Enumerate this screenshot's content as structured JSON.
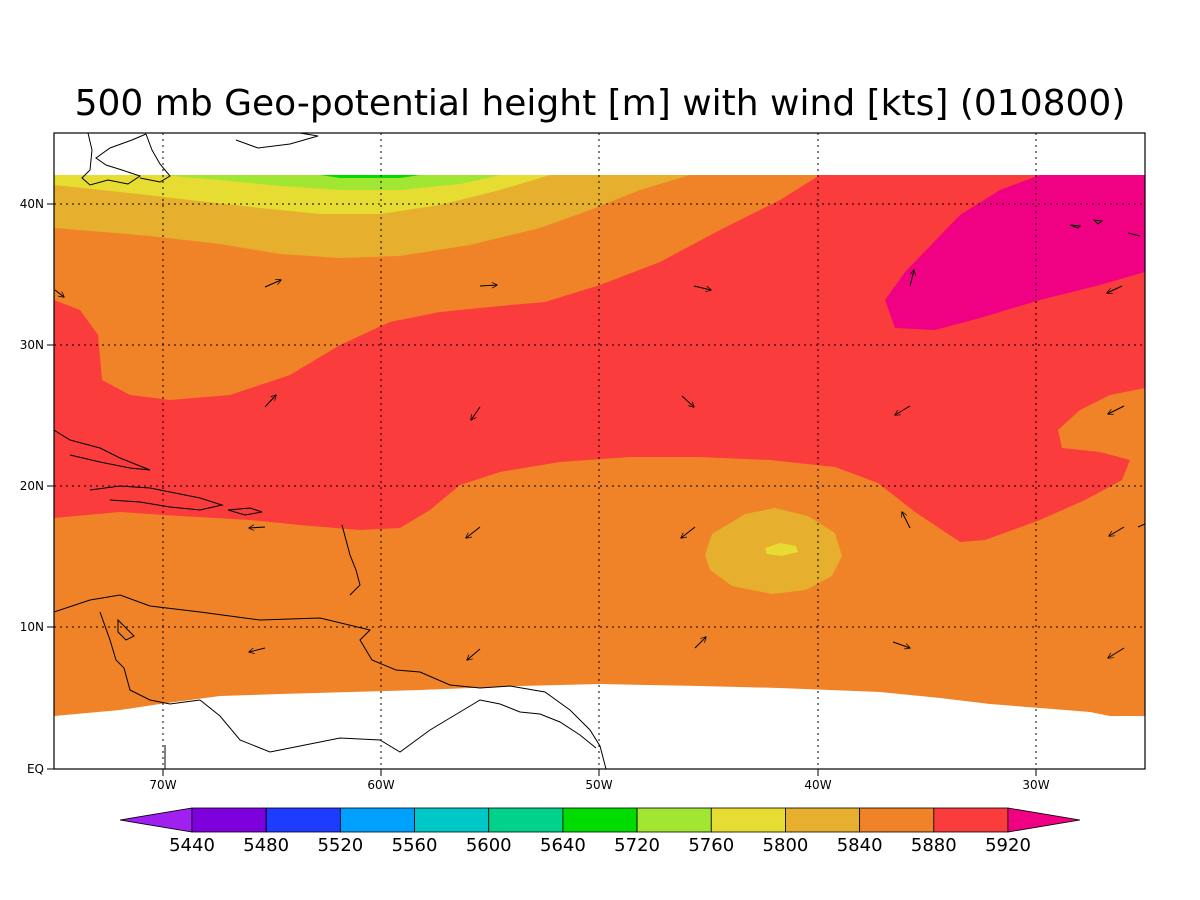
{
  "title": "500 mb Geo-potential height [m] with wind [kts] (010800)",
  "map": {
    "lon_range": [
      -75,
      -25
    ],
    "lat_range": [
      0,
      45
    ],
    "x_ticks": [
      "70W",
      "60W",
      "50W",
      "40W",
      "30W"
    ],
    "y_ticks": [
      "EQ",
      "10N",
      "20N",
      "30N",
      "40N"
    ],
    "gridlines": "dotted"
  },
  "colorbar": {
    "levels": [
      "5440",
      "5480",
      "5520",
      "5560",
      "5600",
      "5640",
      "5720",
      "5760",
      "5800",
      "5840",
      "5880",
      "5920"
    ],
    "colors": [
      "#a020f0",
      "#7e00dc",
      "#1e3cff",
      "#00a0ff",
      "#00c8c8",
      "#00d28c",
      "#00dc00",
      "#a0e632",
      "#e6dc32",
      "#e6af2d",
      "#f08228",
      "#fa3c3c",
      "#f00082"
    ],
    "extend": "both"
  },
  "wind_vectors": "sparse arrows, light (roughly 5-10 kts), mostly easterly to northeasterly south of 30N and westerly north of 30N"
}
